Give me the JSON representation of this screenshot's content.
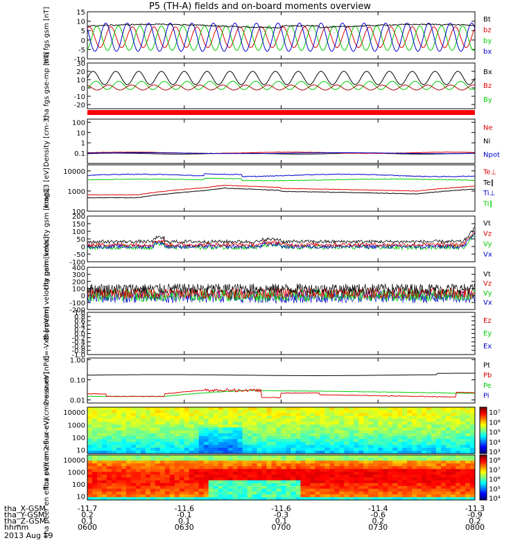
{
  "title": "P5 (TH-A) fields and on-board moments overview",
  "date": "2013 Aug 19",
  "colors": {
    "black": "#000000",
    "red": "#dd0000",
    "green": "#00cc00",
    "blue": "#0000cc"
  },
  "ephemeris": {
    "labels": [
      "tha_X-GSM",
      "tha_Y-GSM",
      "tha_Z-GSM",
      "hhmm"
    ],
    "ticks": [
      [
        "-11.7",
        "0.2",
        "0.1",
        "0600"
      ],
      [
        "-11.6",
        "-0.1",
        "0.1",
        "0630"
      ],
      [
        "-11.6",
        "-0.3",
        "0.1",
        "0700"
      ],
      [
        "-11.4",
        "-0.6",
        "0.2",
        "0730"
      ],
      [
        "-11.3",
        "-0.9",
        "0.2",
        "0800"
      ]
    ]
  },
  "chart_data": [
    {
      "type": "line",
      "ylabel": "tha fgs gsm [nT]",
      "ylim": [
        -10,
        15
      ],
      "yticks": [
        "15",
        "10",
        "5",
        "0",
        "-5",
        "-10"
      ],
      "series": [
        {
          "name": "Bt",
          "color": "#000000"
        },
        {
          "name": "bz",
          "color": "#dd0000"
        },
        {
          "name": "by",
          "color": "#00cc00"
        },
        {
          "name": "bx",
          "color": "#0000cc"
        }
      ],
      "approx": {
        "Bt": 7.5,
        "bz": [
          -4,
          7
        ],
        "by": [
          -5,
          8
        ],
        "bx": [
          -6,
          9
        ]
      }
    },
    {
      "type": "line",
      "ylabel": "tha fgs gse-mp [nT]",
      "ylim": [
        -25,
        30
      ],
      "yticks": [
        "30",
        "20",
        "10",
        "0",
        "-10",
        "-20"
      ],
      "series": [
        {
          "name": "Bx",
          "color": "#000000"
        },
        {
          "name": "Bz",
          "color": "#dd0000"
        },
        {
          "name": "By",
          "color": "#00cc00"
        }
      ],
      "approx": {
        "Bx": [
          5,
          20
        ],
        "Bz": [
          -3,
          3
        ],
        "By": [
          -3,
          10
        ]
      }
    },
    {
      "type": "line",
      "ylabel": "Density [cm-3]",
      "ylim": [
        0.01,
        200
      ],
      "log": true,
      "yticks": [
        "100",
        "10",
        "1",
        "0.1"
      ],
      "series": [
        {
          "name": "Ne",
          "color": "#dd0000"
        },
        {
          "name": "Ni",
          "color": "#000000"
        },
        {
          "name": "Npot",
          "color": "#0000cc"
        }
      ],
      "approx": {
        "Ne": 0.1,
        "Ni": 0.08,
        "Npot": 0.1
      }
    },
    {
      "type": "line",
      "ylabel": "mag13 [eV]",
      "ylim": [
        100,
        20000
      ],
      "log": true,
      "yticks": [
        "10000",
        "1000",
        "100"
      ],
      "series": [
        {
          "name": "Te⊥",
          "color": "#dd0000"
        },
        {
          "name": "Te∥",
          "color": "#000000"
        },
        {
          "name": "Ti⊥",
          "color": "#0000cc"
        },
        {
          "name": "Ti∥",
          "color": "#00cc00"
        }
      ],
      "approx": {
        "Ti⊥": 5500,
        "Ti∥": 3500,
        "Te⊥": [
          600,
          2000
        ],
        "Te∥": [
          400,
          1700
        ]
      }
    },
    {
      "type": "line",
      "ylabel": "tha peim velocity gsm [km/s]",
      "ylim": [
        -100,
        200
      ],
      "yticks": [
        "200",
        "150",
        "100",
        "50",
        "0",
        "-50",
        "-100"
      ],
      "series": [
        {
          "name": "Vt",
          "color": "#000000"
        },
        {
          "name": "Vz",
          "color": "#dd0000"
        },
        {
          "name": "Vy",
          "color": "#00cc00"
        },
        {
          "name": "Vx",
          "color": "#0000cc"
        }
      ],
      "approx": {
        "Vt": 35,
        "Vz": 10,
        "Vy": -5,
        "Vx": 0
      }
    },
    {
      "type": "line",
      "ylabel": "tha peem velocity gsm [km/s]",
      "ylim": [
        -200,
        400
      ],
      "yticks": [
        "400",
        "300",
        "200",
        "100",
        "0",
        "-100",
        "-200"
      ],
      "series": [
        {
          "name": "Vt",
          "color": "#000000"
        },
        {
          "name": "Vz",
          "color": "#dd0000"
        },
        {
          "name": "Vy",
          "color": "#00cc00"
        },
        {
          "name": "Vx",
          "color": "#0000cc"
        }
      ],
      "approx": {
        "Vt": 90,
        "Vz": 30,
        "Vy": 0,
        "Vx": -10
      }
    },
    {
      "type": "line",
      "ylabel": "E=-VxB [mV/m]",
      "ylim": [
        -1,
        1
      ],
      "yticks": [
        "1.0",
        "0.8",
        "0.6",
        "0.4",
        "0.2",
        "0.0",
        "-0.2",
        "-0.4",
        "-0.6",
        "-0.8",
        "-1.0"
      ],
      "series": [
        {
          "name": "Ez",
          "color": "#dd0000"
        },
        {
          "name": "Ey",
          "color": "#00cc00"
        },
        {
          "name": "Ex",
          "color": "#0000cc"
        }
      ]
    },
    {
      "type": "line",
      "ylabel": "Pressure [nPa]",
      "ylim": [
        0.007,
        1.2
      ],
      "log": true,
      "yticks": [
        "1.00",
        "0.10",
        "0.01"
      ],
      "series": [
        {
          "name": "Pt",
          "color": "#000000"
        },
        {
          "name": "Pb",
          "color": "#dd0000"
        },
        {
          "name": "Pe",
          "color": "#00cc00"
        },
        {
          "name": "Pi",
          "color": "#0000cc"
        }
      ],
      "approx": {
        "Pt": 0.17,
        "Pb": [
          0.012,
          0.03
        ],
        "Pe": [
          0.015,
          0.03
        ]
      }
    },
    {
      "type": "heatmap",
      "ylabel": "tha peir en eflux eV/(cm2-s-sr-eV)",
      "ylim": [
        5,
        25000
      ],
      "log": true,
      "yticks": [
        "10000",
        "1000",
        "100",
        "10"
      ],
      "colorbar": {
        "ticks": [
          "10⁷",
          "10⁶",
          "10⁵",
          "10⁴",
          "10³"
        ],
        "range": [
          1000,
          10000000
        ]
      }
    },
    {
      "type": "heatmap",
      "ylabel": "tha peer en eflux eV/(cm2-s-sr-eV)",
      "ylim": [
        5,
        25000
      ],
      "log": true,
      "yticks": [
        "10000",
        "1000",
        "100",
        "10"
      ],
      "colorbar": {
        "ticks": [
          "10⁸",
          "10⁷",
          "10⁶",
          "10⁵",
          "10⁴"
        ],
        "range": [
          3000,
          300000000
        ]
      }
    }
  ]
}
